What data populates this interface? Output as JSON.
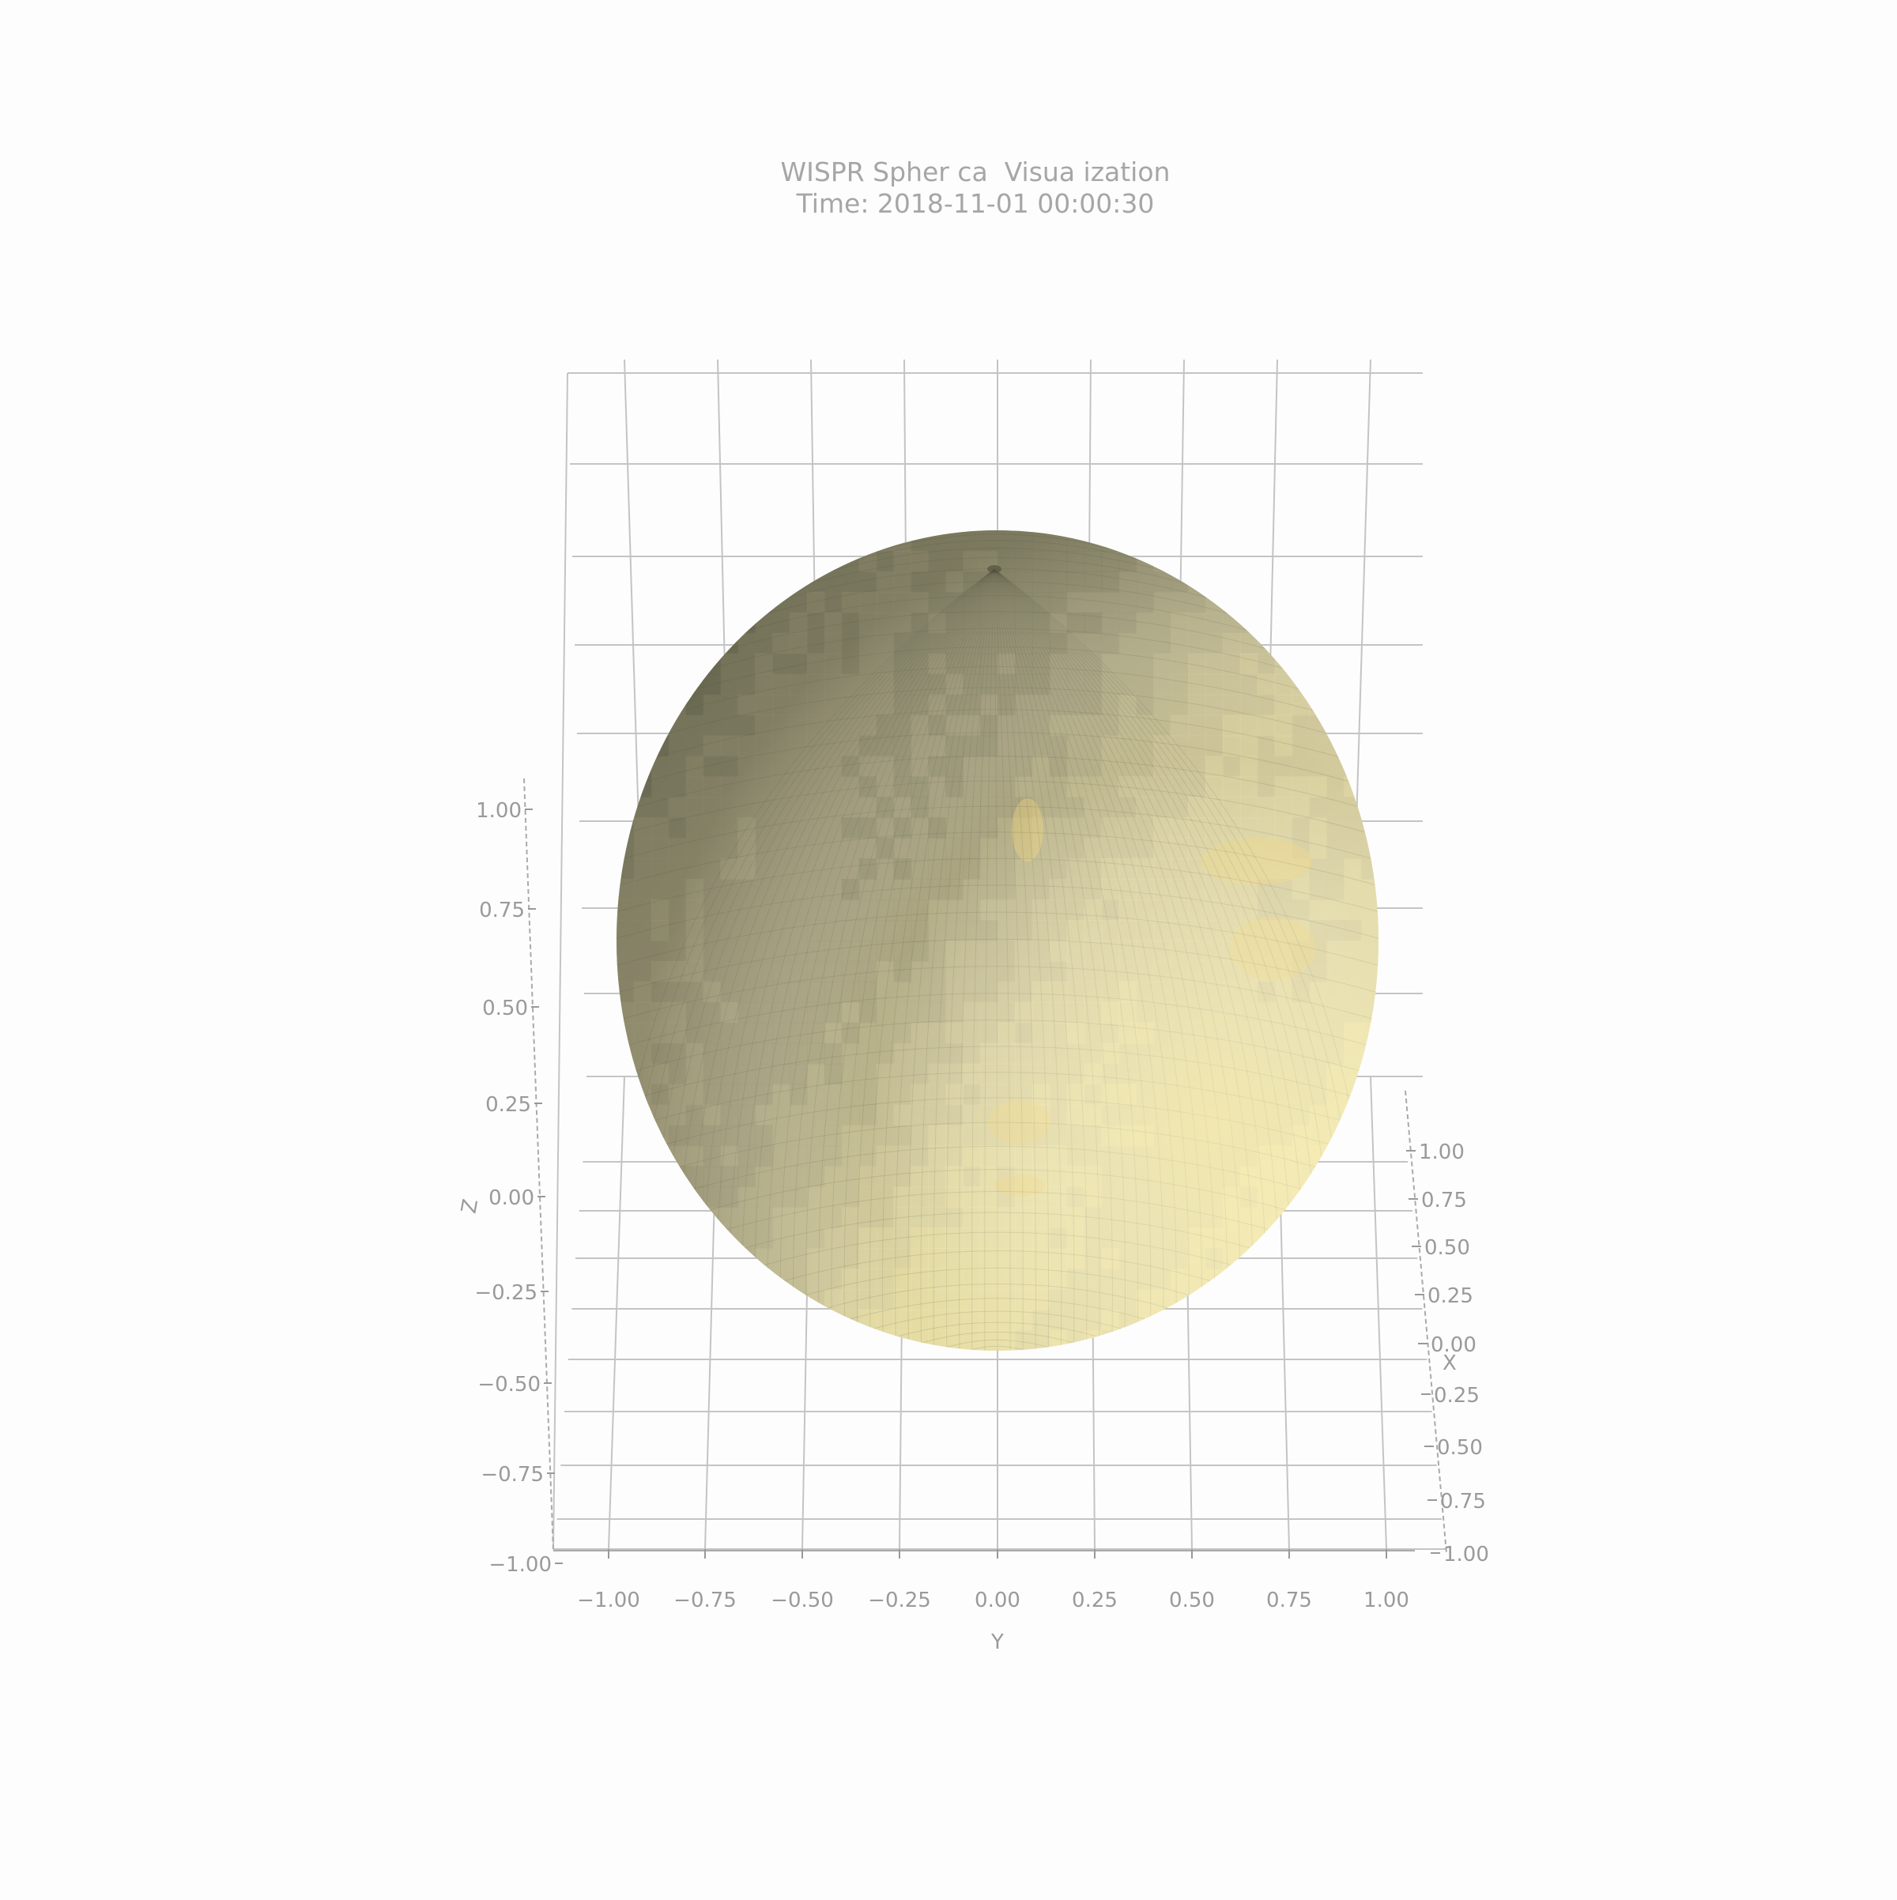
{
  "chart_data": {
    "type": "surface",
    "title": "WISPR Spher ca  Visua ization",
    "subtitle": "Time: 2018-11-01 00:00:30",
    "xlabel": "X",
    "ylabel": "Y",
    "zlabel": "Z",
    "xlim": [
      -1.0,
      1.0
    ],
    "ylim": [
      -1.0,
      1.0
    ],
    "zlim": [
      -1.0,
      1.0
    ],
    "x_ticks": [
      "1.00",
      "0.75",
      "0.50",
      "0.25",
      "0.00",
      "0.25",
      "0.50",
      "0.75",
      "1.00"
    ],
    "y_ticks": [
      "−1.00",
      "−0.75",
      "−0.50",
      "−0.25",
      "0.00",
      "0.25",
      "0.50",
      "0.75",
      "1.00"
    ],
    "z_ticks": [
      "1.00",
      "0.75",
      "0.50",
      "0.25",
      "0.00",
      "−0.25",
      "−0.50",
      "−0.75",
      "−1.00"
    ],
    "surface": "unit sphere",
    "grid": true,
    "colors": {
      "dark": "#6f6e58",
      "mid": "#b9b48c",
      "light": "#f5e8a4",
      "highlight": "#ecd27e",
      "grid": "#c4c4c4",
      "text": "#9a9a9a"
    }
  }
}
